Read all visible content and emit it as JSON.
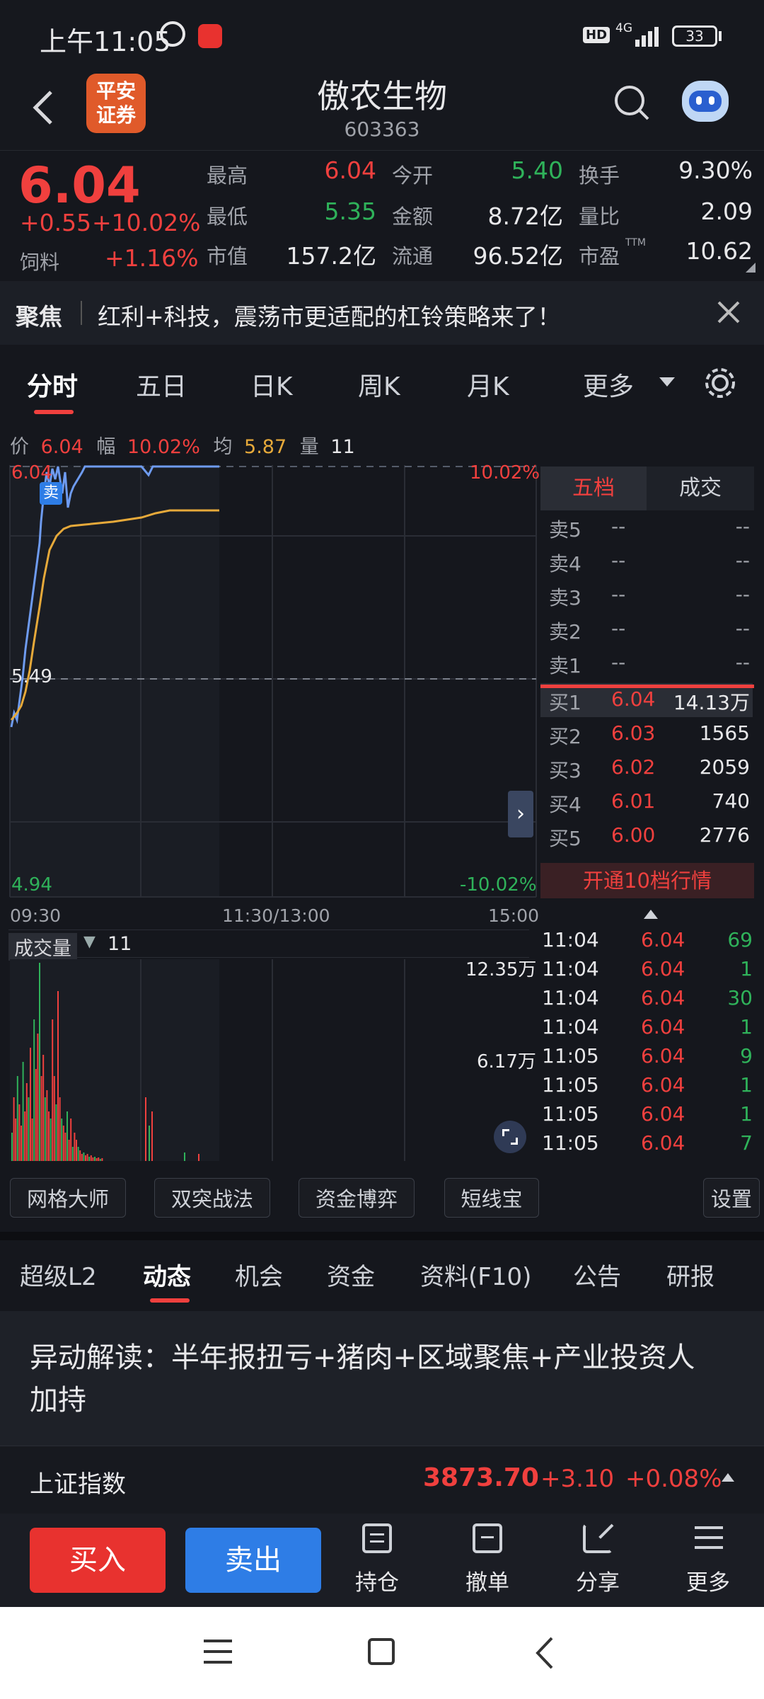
{
  "status_bar": {
    "time": "上午11:05",
    "hd": "HD",
    "net": "4G",
    "battery": "33"
  },
  "header": {
    "broker_logo": "平安\n证券",
    "name": "傲农生物",
    "code": "603363"
  },
  "quote": {
    "price": "6.04",
    "change": "+0.55",
    "change_pct": "+10.02%",
    "sector": "饲料",
    "sector_pct": "+1.16%",
    "stats": [
      {
        "label": "最高",
        "value": "6.04",
        "color": "red"
      },
      {
        "label": "今开",
        "value": "5.40",
        "color": "green"
      },
      {
        "label": "换手",
        "value": "9.30%",
        "color": "white"
      },
      {
        "label": "最低",
        "value": "5.35",
        "color": "green"
      },
      {
        "label": "金额",
        "value": "8.72亿",
        "color": "white"
      },
      {
        "label": "量比",
        "value": "2.09",
        "color": "white"
      },
      {
        "label": "市值",
        "value": "157.2亿",
        "color": "white"
      },
      {
        "label": "流通",
        "value": "96.52亿",
        "color": "white"
      },
      {
        "label": "市盈",
        "value": "10.62",
        "color": "white"
      }
    ],
    "pe_sup": "TTM"
  },
  "focus": {
    "tag": "聚焦",
    "text": "红利+科技，震荡市更适配的杠铃策略来了！"
  },
  "chart_tabs": [
    "分时",
    "五日",
    "日K",
    "周K",
    "月K",
    "更多"
  ],
  "info_line": {
    "price_label": "价",
    "price": "6.04",
    "amp_label": "幅",
    "amp": "10.02%",
    "avg_label": "均",
    "avg": "5.87",
    "vol_label": "量",
    "vol": "11"
  },
  "chart_labels": {
    "high": "6.04",
    "mid": "5.49",
    "low": "4.94",
    "high_pct": "10.02%",
    "low_pct": "-10.02%",
    "sell_mark": "卖",
    "t_start": "09:30",
    "t_mid": "11:30/13:00",
    "t_end": "15:00",
    "vol_label": "成交量",
    "vol_value": "11",
    "vol_max": "12.35万",
    "vol_half": "6.17万"
  },
  "orderbook": {
    "tabs": [
      "五档",
      "成交"
    ],
    "asks": [
      {
        "label": "卖5",
        "price": "--",
        "vol": "--"
      },
      {
        "label": "卖4",
        "price": "--",
        "vol": "--"
      },
      {
        "label": "卖3",
        "price": "--",
        "vol": "--"
      },
      {
        "label": "卖2",
        "price": "--",
        "vol": "--"
      },
      {
        "label": "卖1",
        "price": "--",
        "vol": "--"
      }
    ],
    "bids": [
      {
        "label": "买1",
        "price": "6.04",
        "vol": "14.13万"
      },
      {
        "label": "买2",
        "price": "6.03",
        "vol": "1565"
      },
      {
        "label": "买3",
        "price": "6.02",
        "vol": "2059"
      },
      {
        "label": "买4",
        "price": "6.01",
        "vol": "740"
      },
      {
        "label": "买5",
        "price": "6.00",
        "vol": "2776"
      }
    ],
    "upgrade": "开通10档行情"
  },
  "ticks": [
    {
      "time": "11:04",
      "price": "6.04",
      "vol": "69"
    },
    {
      "time": "11:04",
      "price": "6.04",
      "vol": "1"
    },
    {
      "time": "11:04",
      "price": "6.04",
      "vol": "30"
    },
    {
      "time": "11:04",
      "price": "6.04",
      "vol": "1"
    },
    {
      "time": "11:05",
      "price": "6.04",
      "vol": "9"
    },
    {
      "time": "11:05",
      "price": "6.04",
      "vol": "1"
    },
    {
      "time": "11:05",
      "price": "6.04",
      "vol": "1"
    },
    {
      "time": "11:05",
      "price": "6.04",
      "vol": "7"
    }
  ],
  "tools": [
    "网格大师",
    "双突战法",
    "资金博弈",
    "短线宝",
    "设置"
  ],
  "sub_tabs": [
    "超级L2",
    "动态",
    "机会",
    "资金",
    "资料(F10)",
    "公告",
    "研报"
  ],
  "news": {
    "title": "异动解读：半年报扭亏+猪肉+区域聚焦+产业投资人加持"
  },
  "index": {
    "name": "上证指数",
    "value": "3873.70",
    "change": "+3.10",
    "pct": "+0.08%"
  },
  "actions": {
    "buy": "买入",
    "sell": "卖出",
    "items": [
      "持仓",
      "撤单",
      "分享",
      "更多"
    ]
  },
  "colors": {
    "up": "#f0403e",
    "down": "#2fb25a",
    "price_line": "#6e9bf0",
    "avg_line": "#e6a93a",
    "buy_btn": "#e8322f",
    "sell_btn": "#2e7de6"
  }
}
